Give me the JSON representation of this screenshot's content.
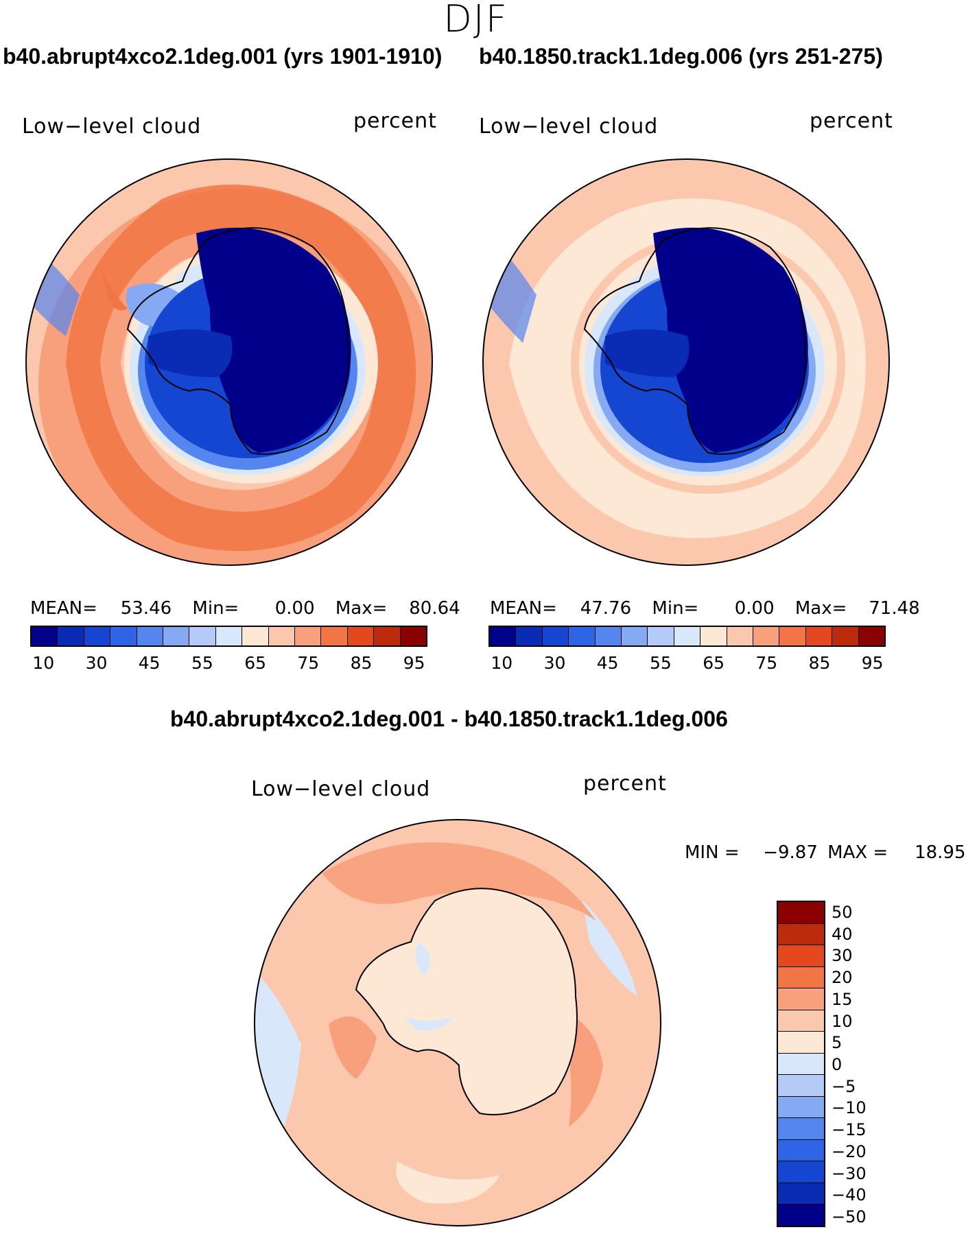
{
  "season": "DJF",
  "panels": [
    {
      "case_title": "b40.abrupt4xco2.1deg.001 (yrs 1901-1910)",
      "variable": "Low−level cloud",
      "units": "percent",
      "stats": {
        "mean_label": "MEAN=",
        "mean": "53.46",
        "min_label": "Min=",
        "min": "0.00",
        "max_label": "Max=",
        "max": "80.64"
      }
    },
    {
      "case_title": "b40.1850.track1.1deg.006 (yrs 251-275)",
      "variable": "Low−level cloud",
      "units": "percent",
      "stats": {
        "mean_label": "MEAN=",
        "mean": "47.76",
        "min_label": "Min=",
        "min": "0.00",
        "max_label": "Max=",
        "max": "71.48"
      }
    }
  ],
  "abs_colorbar": {
    "colors": [
      "#00008b",
      "#0a2bb4",
      "#1446d2",
      "#2e64e6",
      "#5585ee",
      "#85a9f3",
      "#b5cbf7",
      "#d8e8fa",
      "#fde8d6",
      "#fcc8ad",
      "#f8a07c",
      "#f27545",
      "#e3481e",
      "#bd2b0d",
      "#8b0000"
    ],
    "tick_labels": [
      "10",
      "30",
      "45",
      "55",
      "65",
      "75",
      "85",
      "95"
    ]
  },
  "diff_panel": {
    "title": "b40.abrupt4xco2.1deg.001 - b40.1850.track1.1deg.006",
    "variable": "Low−level cloud",
    "units": "percent",
    "stats": {
      "min_label": "MIN =",
      "min": "−9.87",
      "max_label": "MAX =",
      "max": "18.95"
    }
  },
  "diff_colorbar": {
    "colors": [
      "#8b0000",
      "#bd2b0d",
      "#e3481e",
      "#f27545",
      "#f8a07c",
      "#fcc8ad",
      "#fde8d6",
      "#d8e8fa",
      "#b5cbf7",
      "#85a9f3",
      "#5585ee",
      "#2e64e6",
      "#1446d2",
      "#0a2bb4",
      "#00008b"
    ],
    "tick_labels": [
      "50",
      "40",
      "30",
      "20",
      "15",
      "10",
      "5",
      "0",
      "−5",
      "−10",
      "−15",
      "−20",
      "−30",
      "−40",
      "−50"
    ]
  },
  "map_colors": {
    "ice_core": "#00008b",
    "ice_mid": "#1446d2",
    "ice_edge": "#5585ee",
    "sea_pale_blue": "#d8e8fa",
    "sea_peach": "#fde8d6",
    "sea_salmon": "#fcc8ad",
    "sea_orange": "#f8a07c",
    "sea_strong": "#f27545"
  }
}
